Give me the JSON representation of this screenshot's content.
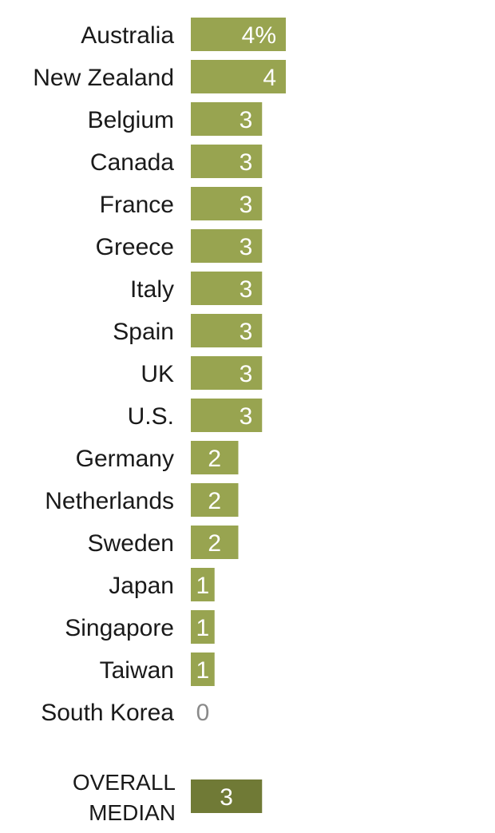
{
  "colors": {
    "bar": "#98a450",
    "median_bar": "#707a36",
    "value_text": "#ffffff",
    "zero_text": "#8a8a8a",
    "label_text": "#1a1a1a"
  },
  "chart_data": {
    "type": "bar",
    "orientation": "horizontal",
    "unit_suffix_first": "%",
    "categories": [
      "Australia",
      "New Zealand",
      "Belgium",
      "Canada",
      "France",
      "Greece",
      "Italy",
      "Spain",
      "UK",
      "U.S.",
      "Germany",
      "Netherlands",
      "Sweden",
      "Japan",
      "Singapore",
      "Taiwan",
      "South Korea"
    ],
    "values": [
      4,
      4,
      3,
      3,
      3,
      3,
      3,
      3,
      3,
      3,
      2,
      2,
      2,
      1,
      1,
      1,
      0
    ],
    "value_labels": [
      "4%",
      "4",
      "3",
      "3",
      "3",
      "3",
      "3",
      "3",
      "3",
      "3",
      "2",
      "2",
      "2",
      "1",
      "1",
      "1",
      "0"
    ],
    "median": {
      "label_lines": [
        "OVERALL",
        "MEDIAN"
      ],
      "value": 3,
      "value_label": "3"
    },
    "xlim": [
      0,
      4
    ],
    "grid": false,
    "legend": "none"
  }
}
